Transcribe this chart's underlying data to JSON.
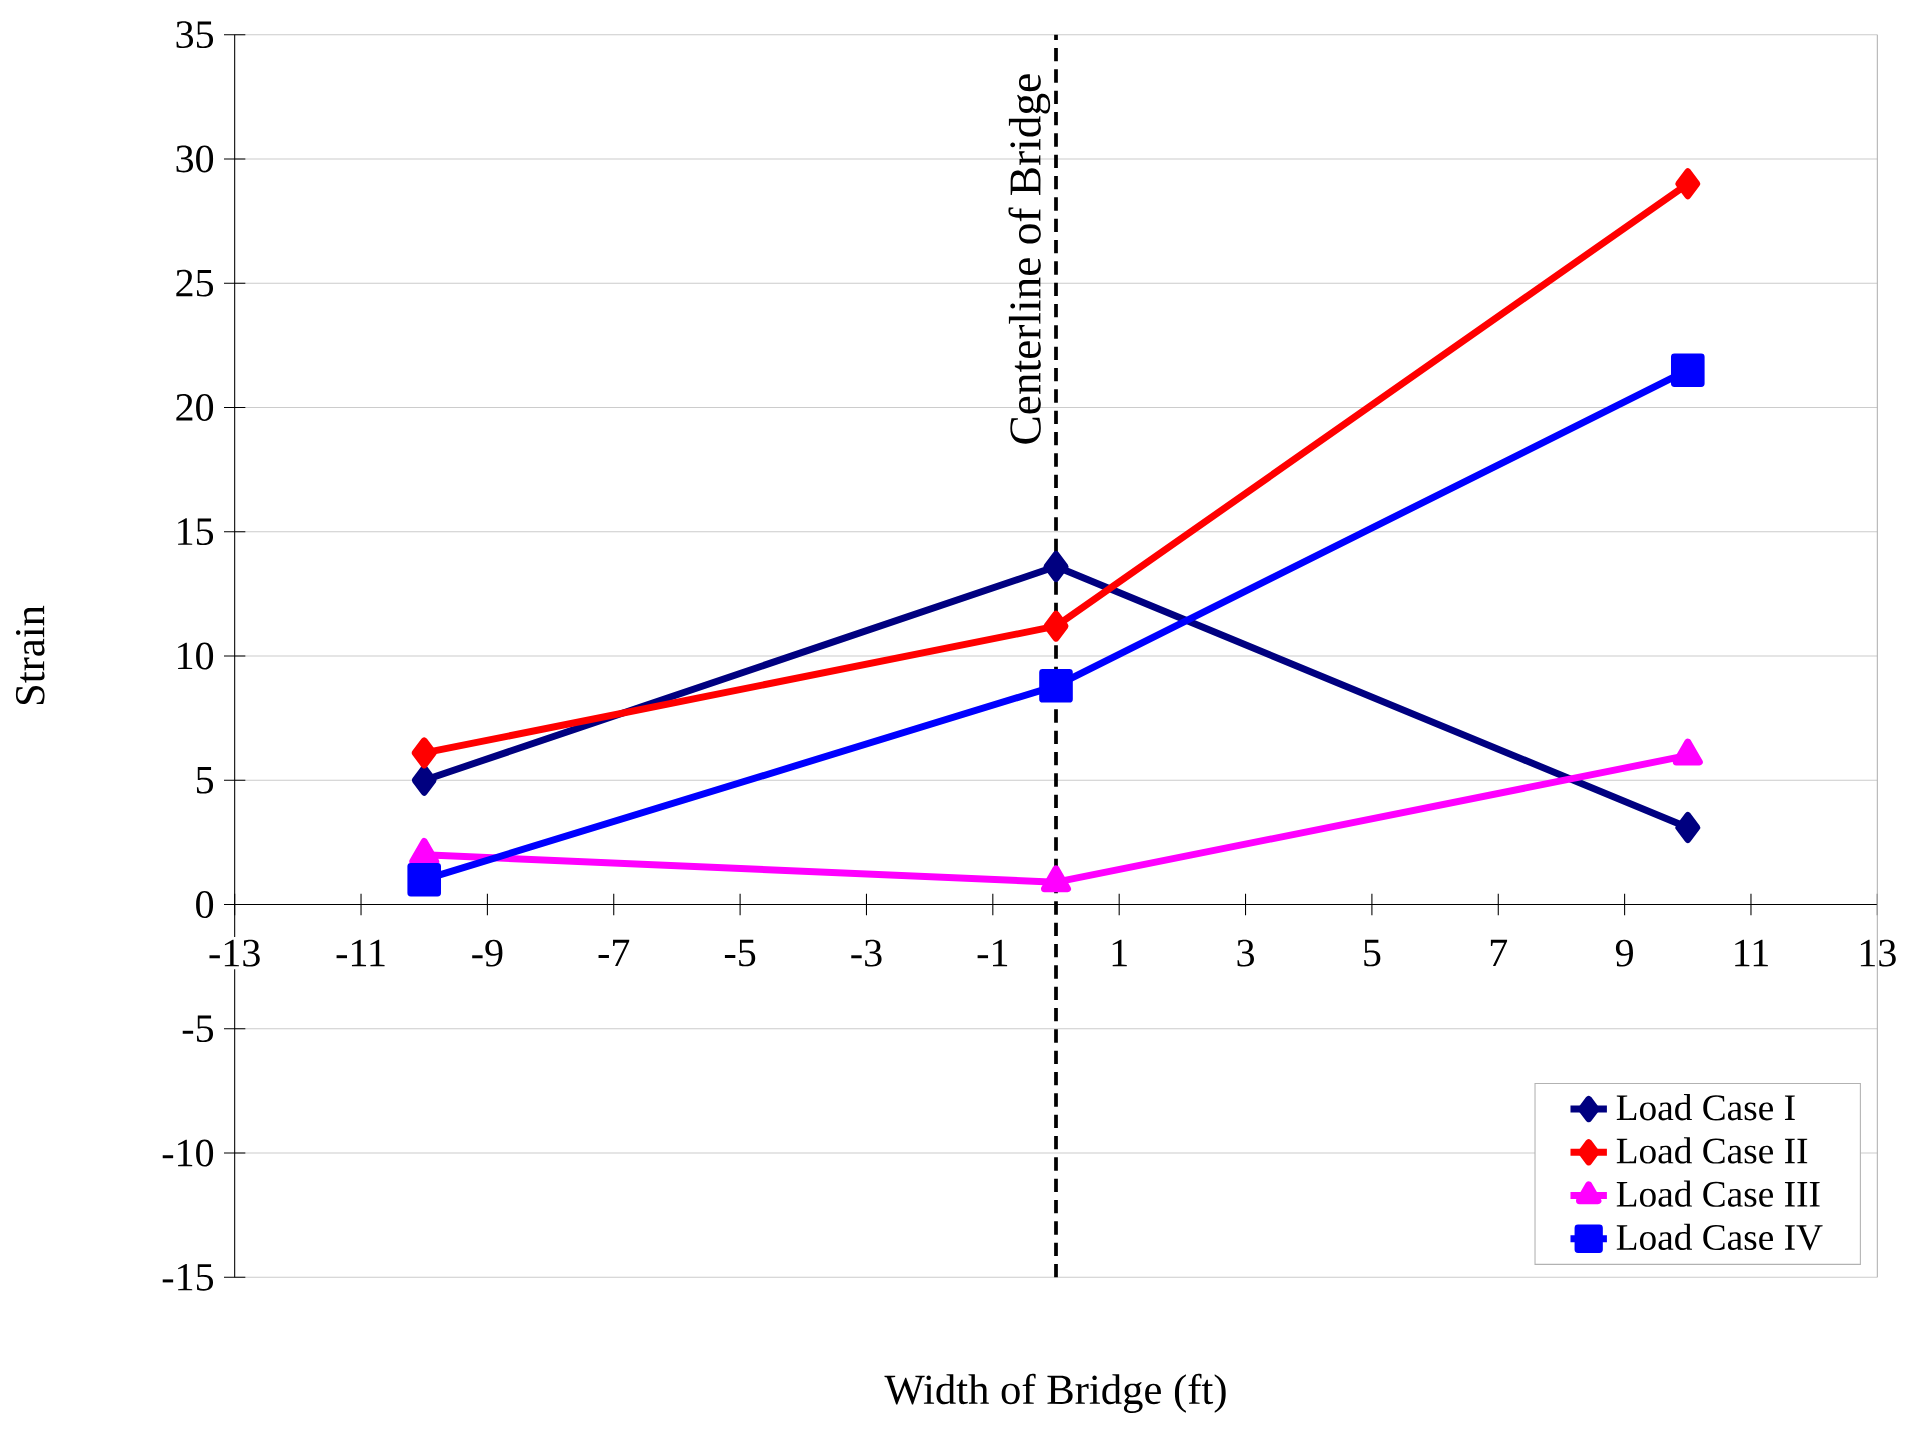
{
  "chart_data": {
    "type": "line",
    "xlabel": "Width of Bridge (ft)",
    "ylabel": "Strain",
    "x": [
      -10,
      0,
      10
    ],
    "series": [
      {
        "name": "Load Case I",
        "color": "#000080",
        "marker": "diamond",
        "values": [
          5.0,
          13.6,
          3.1
        ]
      },
      {
        "name": "Load Case II",
        "color": "#ff0000",
        "marker": "diamond",
        "values": [
          6.1,
          11.2,
          29.0
        ]
      },
      {
        "name": "Load Case III",
        "color": "#ff00ff",
        "marker": "triangle",
        "values": [
          2.0,
          0.9,
          6.0
        ]
      },
      {
        "name": "Load Case IV",
        "color": "#0000ff",
        "marker": "square",
        "values": [
          1.0,
          8.8,
          21.5
        ]
      }
    ],
    "xlim": [
      -13,
      13
    ],
    "xticks": [
      -13,
      -11,
      -9,
      -7,
      -5,
      -3,
      -1,
      1,
      3,
      5,
      7,
      9,
      11,
      13
    ],
    "ylim": [
      -15,
      35
    ],
    "yticks": [
      -15,
      -10,
      -5,
      0,
      5,
      10,
      15,
      20,
      25,
      30,
      35
    ],
    "grid": "y",
    "legend": "bottom right",
    "line_style": "solid",
    "ref_lines": [
      {
        "axis": "x",
        "value": 0,
        "label": "Centerline  of Bridge",
        "color": "#000000",
        "line_style": "dashed"
      }
    ]
  }
}
